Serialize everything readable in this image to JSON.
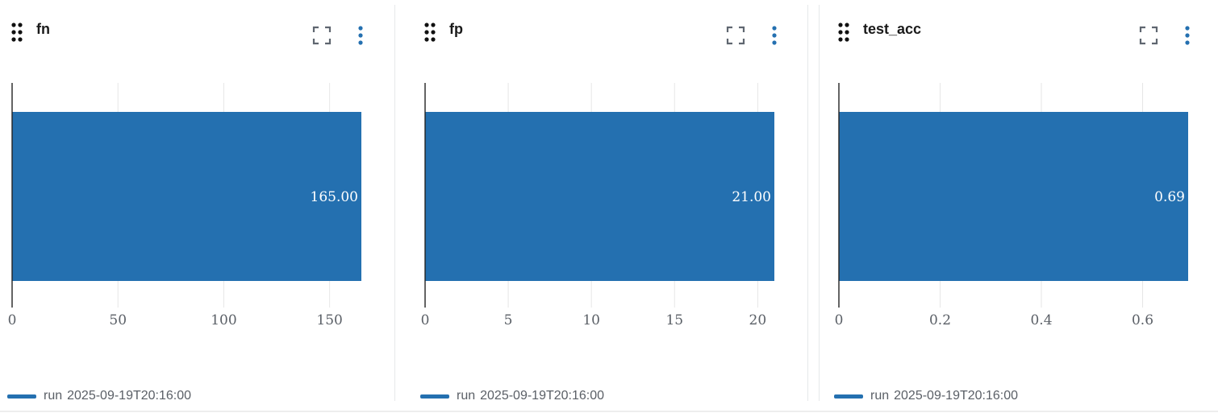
{
  "theme": {
    "bar_color": "#2470b0",
    "axis_color": "#222222",
    "grid_color": "#e6e6e6",
    "tick_color": "#5a5f66"
  },
  "panels": [
    {
      "title": "fn",
      "icons": {
        "drag": "drag-handle-icon",
        "expand": "expand-icon",
        "more": "more-vertical-icon"
      },
      "legend": {
        "name": "run",
        "run": "2025-09-19T20:16:00"
      }
    },
    {
      "title": "fp",
      "icons": {
        "drag": "drag-handle-icon",
        "expand": "expand-icon",
        "more": "more-vertical-icon"
      },
      "legend": {
        "name": "run",
        "run": "2025-09-19T20:16:00"
      }
    },
    {
      "title": "test_acc",
      "icons": {
        "drag": "drag-handle-icon",
        "expand": "expand-icon",
        "more": "more-vertical-icon"
      },
      "legend": {
        "name": "run",
        "run": "2025-09-19T20:16:00"
      }
    }
  ],
  "chart_data": [
    {
      "type": "bar",
      "orientation": "horizontal",
      "title": "fn",
      "series": [
        {
          "name": "run",
          "values": [
            165
          ]
        }
      ],
      "data_labels": [
        "165.00"
      ],
      "xlim": [
        0,
        165
      ],
      "xticks": [
        0,
        50,
        100,
        150
      ],
      "xtick_labels": [
        "0",
        "50",
        "100",
        "150"
      ],
      "grid": true
    },
    {
      "type": "bar",
      "orientation": "horizontal",
      "title": "fp",
      "series": [
        {
          "name": "run",
          "values": [
            21
          ]
        }
      ],
      "data_labels": [
        "21.00"
      ],
      "xlim": [
        0,
        21
      ],
      "xticks": [
        0,
        5,
        10,
        15,
        20
      ],
      "xtick_labels": [
        "0",
        "5",
        "10",
        "15",
        "20"
      ],
      "grid": true
    },
    {
      "type": "bar",
      "orientation": "horizontal",
      "title": "test_acc",
      "series": [
        {
          "name": "run",
          "values": [
            0.69
          ]
        }
      ],
      "data_labels": [
        "0.69"
      ],
      "xlim": [
        0,
        0.69
      ],
      "xticks": [
        0,
        0.2,
        0.4,
        0.6
      ],
      "xtick_labels": [
        "0",
        "0.2",
        "0.4",
        "0.6"
      ],
      "grid": true
    }
  ]
}
